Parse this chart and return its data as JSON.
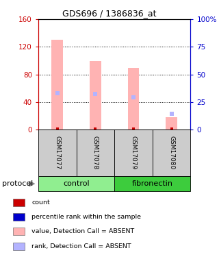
{
  "title": "GDS696 / 1386836_at",
  "samples": [
    "GSM17077",
    "GSM17078",
    "GSM17079",
    "GSM17080"
  ],
  "bar_values": [
    130,
    100,
    90,
    18
  ],
  "rank_values": [
    53,
    52,
    47,
    23
  ],
  "bar_color_absent": "#ffb3b3",
  "rank_color_absent": "#b3b3ff",
  "count_color": "#cc0000",
  "rank_line_color": "#0000cc",
  "left_ylim": [
    0,
    160
  ],
  "left_yticks": [
    0,
    40,
    80,
    120,
    160
  ],
  "right_ylim": [
    0,
    100
  ],
  "right_yticks": [
    0,
    25,
    50,
    75,
    100
  ],
  "right_yticklabels": [
    "0",
    "25",
    "50",
    "75",
    "100%"
  ],
  "groups": [
    {
      "label": "control",
      "color": "#90ee90",
      "cols": [
        0,
        1
      ]
    },
    {
      "label": "fibronectin",
      "color": "#3dcc3d",
      "cols": [
        2,
        3
      ]
    }
  ],
  "protocol_label": "protocol",
  "legend_items": [
    {
      "color": "#cc0000",
      "label": "count"
    },
    {
      "color": "#0000cc",
      "label": "percentile rank within the sample"
    },
    {
      "color": "#ffb3b3",
      "label": "value, Detection Call = ABSENT"
    },
    {
      "color": "#b3b3ff",
      "label": "rank, Detection Call = ABSENT"
    }
  ],
  "left_axis_color": "#cc0000",
  "right_axis_color": "#0000cc",
  "sample_box_color": "#cccccc",
  "bar_width": 0.3
}
